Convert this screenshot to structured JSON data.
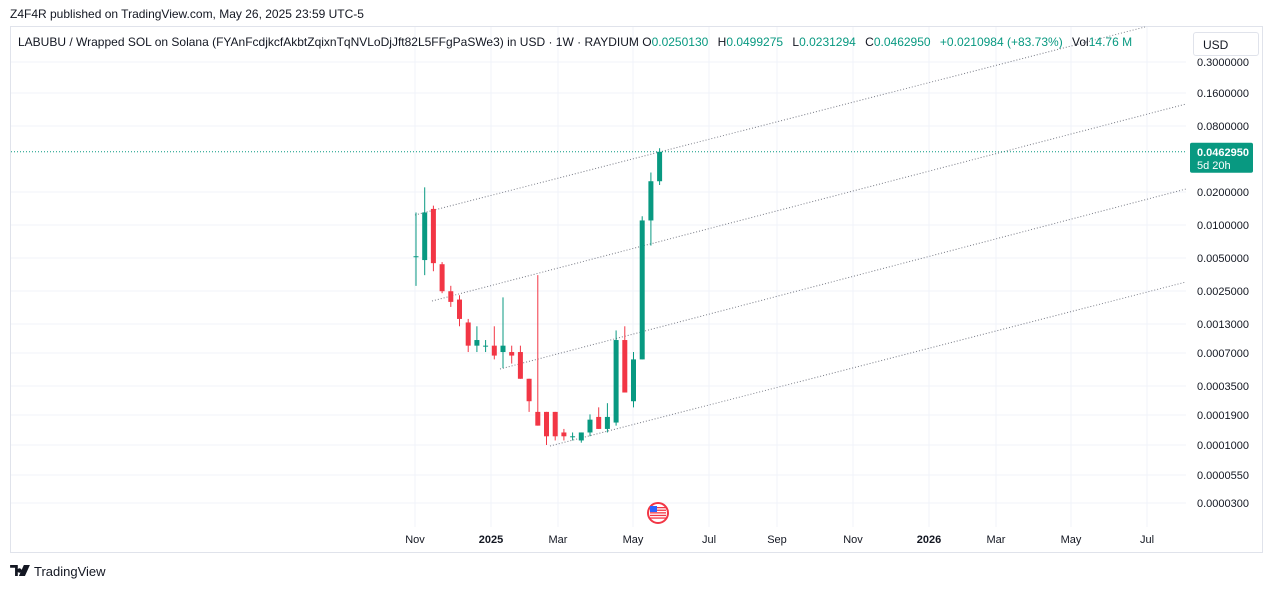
{
  "header": {
    "published_text": "Z4F4R published on TradingView.com, May 26, 2025 23:59 UTC-5"
  },
  "legend": {
    "symbol": "LABUBU / Wrapped SOL on Solana (FYAnFcdjkcfAkbtZqixnTqNVLoDjJft82L5FFgPaSWe3) in USD · 1W · RAYDIUM",
    "o_label": "O",
    "o_value": "0.0250130",
    "h_label": "H",
    "h_value": "0.0499275",
    "l_label": "L",
    "l_value": "0.0231294",
    "c_label": "C",
    "c_value": "0.0462950",
    "change": "+0.0210984 (+83.73%)",
    "vol_label": "Vol",
    "vol_value": "14.76 M"
  },
  "currency_button": {
    "label": "USD"
  },
  "footer": {
    "logo_text": "TradingView"
  },
  "colors": {
    "up": "#089981",
    "down": "#f23645",
    "grid": "#f0f3fa",
    "axis_text": "#131722",
    "channel": "#787b86",
    "price_line": "#089981"
  },
  "chart_data": {
    "type": "candlestick",
    "y_scale": "log",
    "y_ticks": [
      "0.3000000",
      "0.1600000",
      "0.0800000",
      "0.0200000",
      "0.0100000",
      "0.0050000",
      "0.0025000",
      "0.0013000",
      "0.0007000",
      "0.0003500",
      "0.0001900",
      "0.0001000",
      "0.0000550",
      "0.0000300"
    ],
    "x_ticks": [
      "Nov",
      "2025",
      "Mar",
      "May",
      "Jul",
      "Sep",
      "Nov",
      "2026",
      "Mar",
      "May",
      "Jul"
    ],
    "x_ticks_bold": [
      "2025",
      "2026"
    ],
    "last_price": {
      "value": "0.0462950",
      "countdown": "5d 20h"
    },
    "candles": [
      {
        "o": 0.0052,
        "h": 0.013,
        "l": 0.0028,
        "c": 0.0052
      },
      {
        "o": 0.0048,
        "h": 0.022,
        "l": 0.0035,
        "c": 0.013
      },
      {
        "o": 0.014,
        "h": 0.015,
        "l": 0.0038,
        "c": 0.0045
      },
      {
        "o": 0.0044,
        "h": 0.0046,
        "l": 0.0024,
        "c": 0.0025
      },
      {
        "o": 0.0025,
        "h": 0.0028,
        "l": 0.0018,
        "c": 0.002
      },
      {
        "o": 0.0021,
        "h": 0.0023,
        "l": 0.0012,
        "c": 0.0014
      },
      {
        "o": 0.0013,
        "h": 0.0014,
        "l": 0.0007,
        "c": 0.0008
      },
      {
        "o": 0.0008,
        "h": 0.0012,
        "l": 0.0007,
        "c": 0.0009
      },
      {
        "o": 0.0008,
        "h": 0.0009,
        "l": 0.0007,
        "c": 0.0008
      },
      {
        "o": 0.0008,
        "h": 0.0012,
        "l": 0.0006,
        "c": 0.00065
      },
      {
        "o": 0.0007,
        "h": 0.0022,
        "l": 0.0005,
        "c": 0.0008
      },
      {
        "o": 0.0007,
        "h": 0.0008,
        "l": 0.00055,
        "c": 0.00065
      },
      {
        "o": 0.0007,
        "h": 0.0008,
        "l": 0.0004,
        "c": 0.0004
      },
      {
        "o": 0.0004,
        "h": 0.0004,
        "l": 0.0002,
        "c": 0.00025
      },
      {
        "o": 0.0002,
        "h": 0.0035,
        "l": 0.00015,
        "c": 0.00015
      },
      {
        "o": 0.0002,
        "h": 0.0002,
        "l": 0.0001,
        "c": 0.00012
      },
      {
        "o": 0.0002,
        "h": 0.0002,
        "l": 0.00011,
        "c": 0.00012
      },
      {
        "o": 0.00013,
        "h": 0.00014,
        "l": 0.00011,
        "c": 0.00012
      },
      {
        "o": 0.00012,
        "h": 0.00013,
        "l": 0.00011,
        "c": 0.00012
      },
      {
        "o": 0.00011,
        "h": 0.00013,
        "l": 0.000105,
        "c": 0.00013
      },
      {
        "o": 0.00013,
        "h": 0.00019,
        "l": 0.00012,
        "c": 0.00017
      },
      {
        "o": 0.00018,
        "h": 0.00022,
        "l": 0.00014,
        "c": 0.00014
      },
      {
        "o": 0.00014,
        "h": 0.00024,
        "l": 0.00013,
        "c": 0.00018
      },
      {
        "o": 0.00016,
        "h": 0.0011,
        "l": 0.00015,
        "c": 0.0009
      },
      {
        "o": 0.0009,
        "h": 0.0012,
        "l": 0.0003,
        "c": 0.0003
      },
      {
        "o": 0.00025,
        "h": 0.0007,
        "l": 0.00022,
        "c": 0.0006
      },
      {
        "o": 0.0006,
        "h": 0.012,
        "l": 0.0006,
        "c": 0.011
      },
      {
        "o": 0.011,
        "h": 0.03,
        "l": 0.0065,
        "c": 0.025
      },
      {
        "o": 0.025,
        "h": 0.0499,
        "l": 0.0231,
        "c": 0.0463
      }
    ]
  }
}
